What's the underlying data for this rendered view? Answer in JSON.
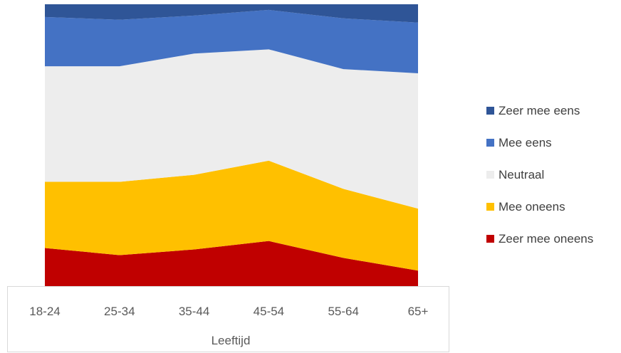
{
  "chart_data": {
    "type": "area",
    "stacked": true,
    "percent_stacked": true,
    "categories": [
      "18-24",
      "25-34",
      "35-44",
      "45-54",
      "55-64",
      "65+"
    ],
    "xlabel": "Leeftijd",
    "ylabel": "",
    "ylim": [
      0,
      100
    ],
    "grid": false,
    "legend_position": "right",
    "series": [
      {
        "name": "Zeer mee oneens",
        "color": "#C00000",
        "values": [
          13.5,
          11,
          13,
          16,
          10,
          5.5
        ]
      },
      {
        "name": "Mee oneens",
        "color": "#FFC000",
        "values": [
          23.5,
          26,
          26.5,
          28.5,
          24.5,
          22
        ]
      },
      {
        "name": "Neutraal",
        "color": "#EDEDED",
        "values": [
          41,
          41,
          43,
          39.5,
          42.5,
          48
        ]
      },
      {
        "name": "Mee eens",
        "color": "#4472C4",
        "values": [
          17.5,
          16.5,
          13.5,
          14,
          18,
          18
        ]
      },
      {
        "name": "Zeer mee eens",
        "color": "#2F5597",
        "values": [
          4.5,
          5.5,
          4,
          2,
          5,
          6.5
        ]
      }
    ]
  }
}
